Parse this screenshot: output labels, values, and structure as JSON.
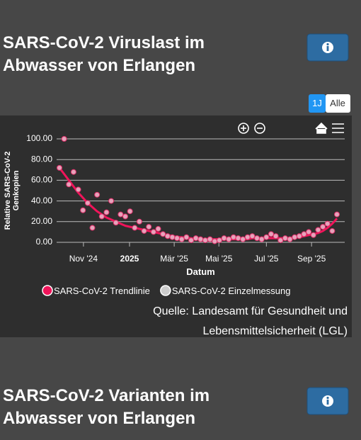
{
  "sections": [
    {
      "title_lines": [
        "SARS-CoV-2 Viruslast im",
        "Abwasser von Erlangen"
      ]
    },
    {
      "title_lines": [
        "SARS-CoV-2 Varianten im",
        "Abwasser von Erlangen"
      ]
    }
  ],
  "range_buttons": [
    "1J",
    "Alle"
  ],
  "chart_data": {
    "type": "line",
    "xlabel": "Datum",
    "ylabel": [
      "Relative SARS-CoV-2",
      "Genkopien"
    ],
    "categories": [
      null,
      null,
      null,
      null,
      null,
      null,
      null,
      null,
      null,
      null,
      null,
      null,
      null,
      null,
      null,
      null,
      null,
      null,
      null,
      null,
      null,
      null,
      null,
      null,
      null,
      null,
      null,
      null,
      null,
      null,
      null,
      null,
      null,
      null,
      null,
      null,
      null,
      null,
      null,
      null,
      null,
      null,
      null,
      null,
      null,
      null,
      null,
      null,
      null,
      null,
      null,
      null,
      null,
      null,
      null,
      null,
      null,
      null,
      null,
      null
    ],
    "xlim": [
      0,
      59
    ],
    "xticks": [
      {
        "value": 5.1,
        "label": "Nov '24"
      },
      {
        "value": 14.9,
        "label": "2025"
      },
      {
        "value": 24.4,
        "label": "Mär '25"
      },
      {
        "value": 33.9,
        "label": "Mai '25"
      },
      {
        "value": 44,
        "label": "Jul '25"
      },
      {
        "value": 53.6,
        "label": "Sep '25"
      }
    ],
    "ylim": [
      0,
      100
    ],
    "yticks": [
      {
        "value": 0,
        "label": "0.00"
      },
      {
        "value": 20,
        "label": "20.00"
      },
      {
        "value": 40,
        "label": "40.00"
      },
      {
        "value": 60,
        "label": "60.00"
      },
      {
        "value": 80,
        "label": "80.00"
      },
      {
        "value": 100,
        "label": "100.00"
      }
    ],
    "grid": true,
    "legend": "bottom",
    "series": [
      {
        "name": "SARS-CoV-2 Trendlinie",
        "type": "line",
        "color": "#f0145a",
        "values": [
          72,
          66,
          60,
          54,
          48,
          43,
          38,
          34,
          30,
          27,
          24,
          22,
          20,
          18,
          16,
          15,
          14,
          13,
          12,
          11,
          10,
          9,
          8,
          7,
          6,
          5,
          5,
          4,
          4,
          3,
          3,
          3,
          3,
          3,
          3,
          3,
          3,
          3,
          3,
          3,
          3,
          4,
          4,
          4,
          4,
          4,
          4,
          4,
          4,
          4,
          5,
          5,
          6,
          7,
          8,
          9,
          11,
          14,
          18,
          23
        ]
      },
      {
        "name": "SARS-CoV-2 Einzelmessung",
        "type": "scatter",
        "color": "#e6a3bb",
        "values": [
          72,
          100,
          56,
          68,
          51,
          31,
          38,
          14,
          46,
          25,
          29,
          40,
          19,
          27,
          25,
          30,
          14,
          20,
          11,
          15,
          10,
          13,
          8,
          6,
          5,
          4,
          3,
          5,
          2,
          4,
          3,
          2,
          3,
          1,
          2,
          4,
          3,
          5,
          4,
          3,
          5,
          6,
          4,
          3,
          5,
          8,
          6,
          2,
          4,
          3,
          5,
          6,
          8,
          10,
          7,
          12,
          15,
          18,
          11,
          27
        ]
      }
    ]
  },
  "source_lines": [
    "Quelle: Landesamt für Gesundheit und",
    "Lebensmittelsicherheit (LGL)"
  ]
}
